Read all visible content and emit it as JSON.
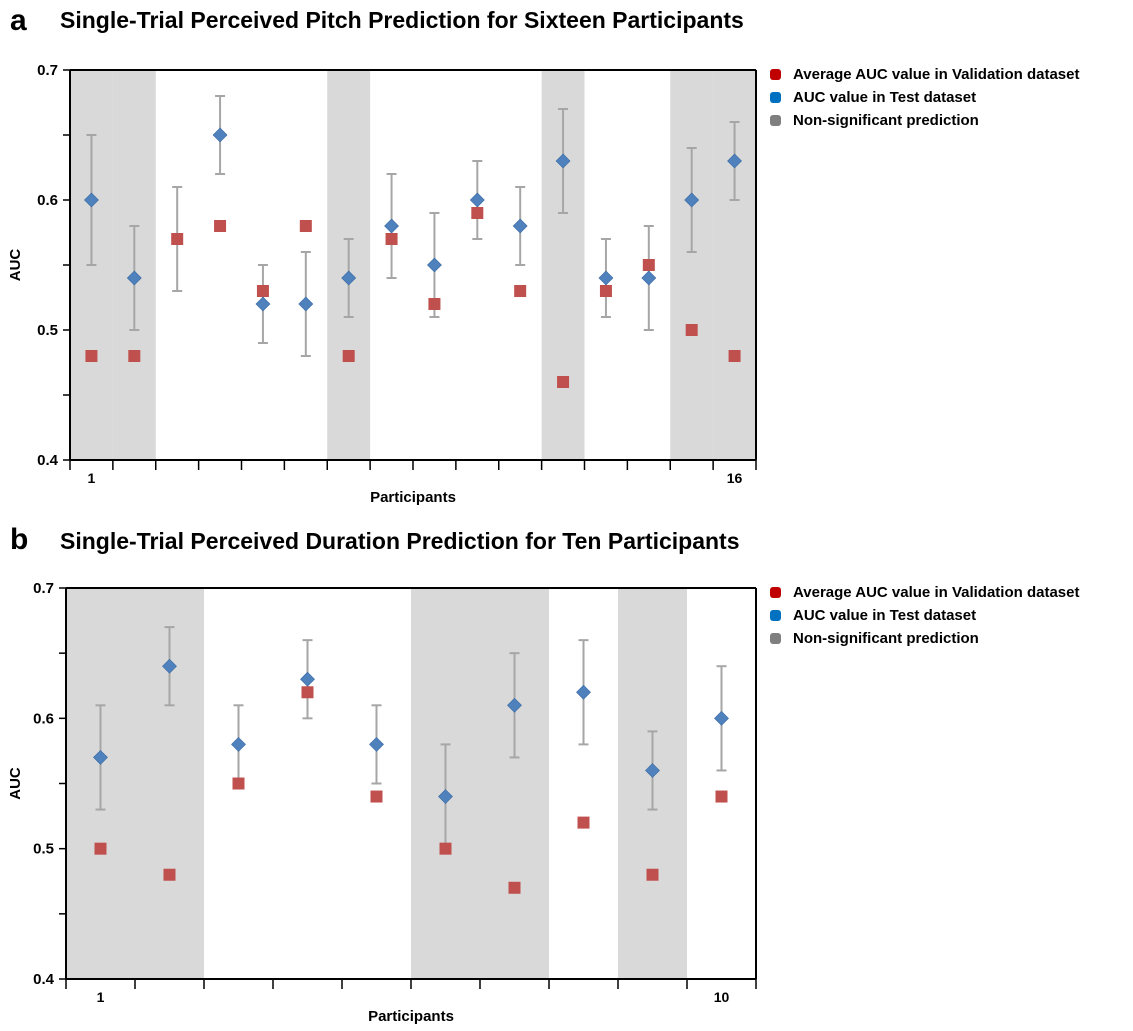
{
  "chart_data": [
    {
      "panel": "a",
      "type": "scatter",
      "title": "Single-Trial Perceived Pitch Prediction for Sixteen Participants",
      "xlabel": "Participants",
      "ylabel": "AUC",
      "ylim": [
        0.4,
        0.7
      ],
      "y_ticks": [
        "0.4",
        "0.5",
        "0.6",
        "0.7"
      ],
      "x_tick_labels": [
        {
          "index": 1,
          "label": "1"
        },
        {
          "index": 16,
          "label": "16"
        }
      ],
      "grid": false,
      "legend_position": "top-right",
      "legend": [
        {
          "label": "Average AUC value in Validation dataset",
          "color": "#c00000"
        },
        {
          "label": "AUC value in Test dataset",
          "color": "#0070c0"
        },
        {
          "label": "Non-significant prediction",
          "color": "#7f7f7f"
        }
      ],
      "non_significant_participants": [
        1,
        2,
        7,
        12,
        15,
        16
      ],
      "series": [
        {
          "name": "Average AUC value in Validation dataset",
          "marker": "square",
          "color": "#c0504d",
          "values": [
            0.48,
            0.48,
            0.57,
            0.58,
            0.53,
            0.58,
            0.48,
            0.57,
            0.52,
            0.59,
            0.53,
            0.46,
            0.53,
            0.55,
            0.5,
            0.48
          ]
        },
        {
          "name": "AUC value in Test dataset",
          "marker": "diamond",
          "color": "#4f81bd",
          "values": [
            0.6,
            0.54,
            null,
            0.65,
            0.52,
            0.52,
            0.54,
            0.58,
            0.55,
            0.6,
            0.58,
            0.63,
            0.54,
            0.54,
            0.6,
            0.63
          ],
          "error_low": [
            0.55,
            0.5,
            0.53,
            0.62,
            0.49,
            0.48,
            0.51,
            0.54,
            0.51,
            0.57,
            0.55,
            0.59,
            0.51,
            0.5,
            0.56,
            0.6
          ],
          "error_high": [
            0.65,
            0.58,
            0.61,
            0.68,
            0.55,
            0.56,
            0.57,
            0.62,
            0.59,
            0.63,
            0.61,
            0.67,
            0.57,
            0.58,
            0.64,
            0.66
          ]
        }
      ]
    },
    {
      "panel": "b",
      "type": "scatter",
      "title": "Single-Trial Perceived Duration Prediction for Ten Participants",
      "xlabel": "Participants",
      "ylabel": "AUC",
      "ylim": [
        0.4,
        0.7
      ],
      "y_ticks": [
        "0.4",
        "0.5",
        "0.6",
        "0.7"
      ],
      "x_tick_labels": [
        {
          "index": 1,
          "label": "1"
        },
        {
          "index": 10,
          "label": "10"
        }
      ],
      "grid": false,
      "legend_position": "top-right",
      "legend": [
        {
          "label": "Average AUC value in Validation dataset",
          "color": "#c00000"
        },
        {
          "label": "AUC value in Test dataset",
          "color": "#0070c0"
        },
        {
          "label": "Non-significant prediction",
          "color": "#7f7f7f"
        }
      ],
      "non_significant_participants": [
        1,
        2,
        6,
        7,
        9
      ],
      "series": [
        {
          "name": "Average AUC value in Validation dataset",
          "marker": "square",
          "color": "#c0504d",
          "values": [
            0.5,
            0.48,
            0.55,
            0.62,
            0.54,
            0.5,
            0.47,
            0.52,
            0.48,
            0.54
          ]
        },
        {
          "name": "AUC value in Test dataset",
          "marker": "diamond",
          "color": "#4f81bd",
          "values": [
            0.57,
            0.64,
            0.58,
            0.63,
            0.58,
            0.54,
            0.61,
            0.62,
            0.56,
            0.6
          ],
          "error_low": [
            0.53,
            0.61,
            0.55,
            0.6,
            0.55,
            0.5,
            0.57,
            0.58,
            0.53,
            0.56
          ],
          "error_high": [
            0.61,
            0.67,
            0.61,
            0.66,
            0.61,
            0.58,
            0.65,
            0.66,
            0.59,
            0.64
          ]
        }
      ]
    }
  ]
}
